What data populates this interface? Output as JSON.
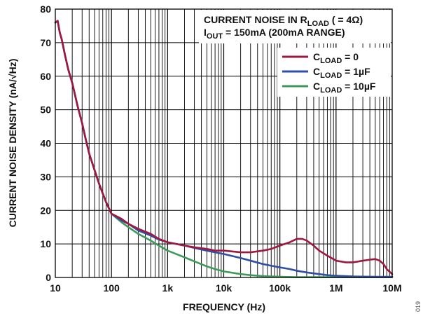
{
  "chart_data": {
    "type": "line",
    "title": "",
    "xlabel": "FREQUENCY (Hz)",
    "ylabel": "CURRENT NOISE DENSITY (nA/√Hz)",
    "x_scale": "log",
    "xlim": [
      10,
      10000000
    ],
    "ylim": [
      0,
      80
    ],
    "x_tick_labels": [
      "10",
      "100",
      "1k",
      "10k",
      "100k",
      "1M",
      "10M"
    ],
    "y_tick_labels": [
      "0",
      "10",
      "20",
      "30",
      "40",
      "50",
      "60",
      "70",
      "80"
    ],
    "grid": true,
    "legend_position": "top-right",
    "annotation": {
      "line1_prefix": "CURRENT NOISE IN R",
      "line1_sub": "LOAD",
      "line1_suffix": " ( = 4Ω)",
      "line2_prefix": "I",
      "line2_sub": "OUT",
      "line2_suffix": " = 150mA (200mA RANGE)"
    },
    "series": [
      {
        "name_prefix": "C",
        "name_sub": "LOAD",
        "name_suffix": " = 0",
        "color": "#a0173f",
        "x": [
          10,
          11,
          12,
          13,
          15,
          17,
          20,
          25,
          30,
          35,
          40,
          50,
          60,
          70,
          80,
          100,
          150,
          200,
          300,
          500,
          700,
          1000,
          2000,
          3000,
          5000,
          7000,
          10000,
          20000,
          30000,
          50000,
          70000,
          100000,
          150000,
          200000,
          250000,
          300000,
          400000,
          500000,
          700000,
          1000000,
          1500000,
          2000000,
          3000000,
          4000000,
          5000000,
          6000000,
          7000000,
          8000000,
          10000000
        ],
        "y": [
          76,
          76.5,
          73,
          71,
          66,
          62,
          58,
          51,
          46,
          41,
          37,
          32,
          28,
          25,
          22.5,
          19,
          17.5,
          16,
          14.5,
          13,
          11.5,
          10.5,
          9.5,
          9,
          8.5,
          8,
          8,
          7.5,
          7.5,
          8,
          8.5,
          9.5,
          10.5,
          11.5,
          11.5,
          11,
          9.5,
          8,
          6.5,
          5,
          4.5,
          4.5,
          5,
          5.3,
          5.5,
          5,
          4,
          2.5,
          1
        ]
      },
      {
        "name_prefix": "C",
        "name_sub": "LOAD",
        "name_suffix": " = 1µF",
        "color": "#2f4ea5",
        "x": [
          10,
          11,
          12,
          13,
          15,
          17,
          20,
          25,
          30,
          35,
          40,
          50,
          60,
          70,
          80,
          100,
          150,
          200,
          300,
          500,
          700,
          1000,
          2000,
          3000,
          5000,
          7000,
          10000,
          20000,
          30000,
          50000,
          70000,
          100000,
          150000,
          200000,
          300000,
          500000,
          700000,
          1000000,
          2000000,
          5000000,
          10000000
        ],
        "y": [
          76,
          76.5,
          73,
          71,
          66,
          62,
          58,
          51,
          46,
          41,
          37,
          32,
          28,
          25,
          22.5,
          19,
          17,
          16,
          14,
          12.5,
          11.3,
          10.5,
          9.5,
          8.8,
          8,
          7.5,
          7,
          5.8,
          5,
          4,
          3.5,
          3,
          2.5,
          2,
          1.5,
          1,
          0.7,
          0.5,
          0.3,
          0.2,
          0.2
        ]
      },
      {
        "name_prefix": "C",
        "name_sub": "LOAD",
        "name_suffix": " = 10µF",
        "color": "#3e9a5a",
        "x": [
          10,
          11,
          12,
          13,
          15,
          17,
          20,
          25,
          30,
          35,
          40,
          50,
          60,
          70,
          80,
          100,
          150,
          200,
          300,
          500,
          700,
          1000,
          2000,
          3000,
          5000,
          7000,
          10000,
          20000,
          30000,
          50000,
          100000,
          200000,
          500000,
          1000000,
          10000000
        ],
        "y": [
          76,
          76.5,
          73,
          71,
          66,
          62,
          58,
          51,
          46,
          41,
          37,
          32,
          28,
          25,
          22.5,
          19,
          16.5,
          15,
          13,
          11,
          9.5,
          8,
          6,
          4.8,
          3.3,
          2.5,
          1.8,
          1,
          0.7,
          0.4,
          0.2,
          0.1,
          0.1,
          0.1,
          0.1
        ]
      }
    ]
  },
  "figure_id": "019"
}
